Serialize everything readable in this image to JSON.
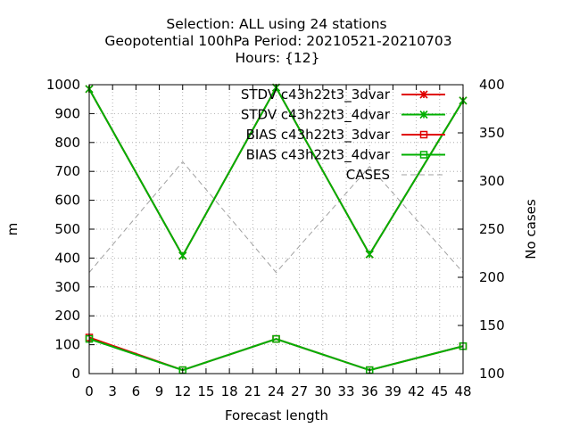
{
  "chart_data": {
    "type": "line",
    "title_lines": [
      "Selection: ALL using    24 stations",
      "Geopotential 100hPa   Period: 20210521-20210703",
      "Hours: {12}"
    ],
    "xlabel": "Forecast length",
    "ylabel": "m",
    "y2label": "No cases",
    "xlim": [
      0,
      48
    ],
    "ylim": [
      0,
      1000
    ],
    "y2lim": [
      100,
      400
    ],
    "xticks": [
      "0",
      "3",
      "6",
      "9",
      "12",
      "15",
      "18",
      "21",
      "24",
      "27",
      "30",
      "33",
      "36",
      "39",
      "42",
      "45",
      "48"
    ],
    "yticks": [
      "0",
      "100",
      "200",
      "300",
      "400",
      "500",
      "600",
      "700",
      "800",
      "900",
      "1000"
    ],
    "y2ticks": [
      "100",
      "150",
      "200",
      "250",
      "300",
      "350",
      "400"
    ],
    "grid": true,
    "legend_position": "top-right",
    "x": [
      0,
      12,
      24,
      36,
      48
    ],
    "series": [
      {
        "name": "STDV c43h22t3_3dvar",
        "axis": "y",
        "color": "#e00000",
        "marker": "x",
        "dashed": false,
        "values": [
          985,
          408,
          990,
          413,
          945
        ]
      },
      {
        "name": "STDV c43h22t3_4dvar",
        "axis": "y",
        "color": "#00b000",
        "marker": "x",
        "dashed": false,
        "values": [
          985,
          408,
          990,
          413,
          945
        ]
      },
      {
        "name": "BIAS c43h22t3_3dvar",
        "axis": "y",
        "color": "#e00000",
        "marker": "square",
        "dashed": false,
        "values": [
          125,
          12,
          120,
          12,
          95
        ]
      },
      {
        "name": "BIAS c43h22t3_4dvar",
        "axis": "y",
        "color": "#00b000",
        "marker": "square",
        "dashed": false,
        "values": [
          120,
          12,
          120,
          12,
          95
        ]
      },
      {
        "name": "CASES",
        "axis": "y2",
        "color": "#a0a0a0",
        "marker": "none",
        "dashed": true,
        "values": [
          205,
          320,
          205,
          315,
          205
        ]
      }
    ]
  }
}
